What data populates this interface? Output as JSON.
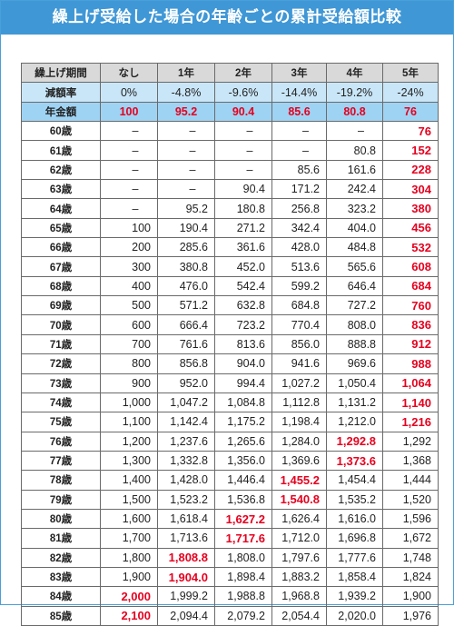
{
  "title": "繰上げ受給した場合の年齢ごとの累計受給額比較",
  "columns": [
    "繰上げ期間",
    "なし",
    "1年",
    "2年",
    "3年",
    "4年",
    "5年"
  ],
  "rate_row": {
    "label": "減額率",
    "values": [
      "0%",
      "-4.8%",
      "-9.6%",
      "-14.4%",
      "-19.2%",
      "-24%"
    ]
  },
  "amount_row": {
    "label": "年金額",
    "values": [
      "100",
      "95.2",
      "90.4",
      "85.6",
      "80.8",
      "76"
    ]
  },
  "accent_red": "#e6001e",
  "header_blue": "#3f97d6",
  "rows": [
    {
      "age": "60歳",
      "values": [
        "–",
        "–",
        "–",
        "–",
        "–",
        "76"
      ]
    },
    {
      "age": "61歳",
      "values": [
        "–",
        "–",
        "–",
        "–",
        "80.8",
        "152"
      ]
    },
    {
      "age": "62歳",
      "values": [
        "–",
        "–",
        "–",
        "85.6",
        "161.6",
        "228"
      ]
    },
    {
      "age": "63歳",
      "values": [
        "–",
        "–",
        "90.4",
        "171.2",
        "242.4",
        "304"
      ]
    },
    {
      "age": "64歳",
      "values": [
        "–",
        "95.2",
        "180.8",
        "256.8",
        "323.2",
        "380"
      ]
    },
    {
      "age": "65歳",
      "values": [
        "100",
        "190.4",
        "271.2",
        "342.4",
        "404.0",
        "456"
      ]
    },
    {
      "age": "66歳",
      "values": [
        "200",
        "285.6",
        "361.6",
        "428.0",
        "484.8",
        "532"
      ]
    },
    {
      "age": "67歳",
      "values": [
        "300",
        "380.8",
        "452.0",
        "513.6",
        "565.6",
        "608"
      ]
    },
    {
      "age": "68歳",
      "values": [
        "400",
        "476.0",
        "542.4",
        "599.2",
        "646.4",
        "684"
      ]
    },
    {
      "age": "69歳",
      "values": [
        "500",
        "571.2",
        "632.8",
        "684.8",
        "727.2",
        "760"
      ]
    },
    {
      "age": "70歳",
      "values": [
        "600",
        "666.4",
        "723.2",
        "770.4",
        "808.0",
        "836"
      ]
    },
    {
      "age": "71歳",
      "values": [
        "700",
        "761.6",
        "813.6",
        "856.0",
        "888.8",
        "912"
      ]
    },
    {
      "age": "72歳",
      "values": [
        "800",
        "856.8",
        "904.0",
        "941.6",
        "969.6",
        "988"
      ]
    },
    {
      "age": "73歳",
      "values": [
        "900",
        "952.0",
        "994.4",
        "1,027.2",
        "1,050.4",
        "1,064"
      ]
    },
    {
      "age": "74歳",
      "values": [
        "1,000",
        "1,047.2",
        "1,084.8",
        "1,112.8",
        "1,131.2",
        "1,140"
      ]
    },
    {
      "age": "75歳",
      "values": [
        "1,100",
        "1,142.4",
        "1,175.2",
        "1,198.4",
        "1,212.0",
        "1,216"
      ]
    },
    {
      "age": "76歳",
      "values": [
        "1,200",
        "1,237.6",
        "1,265.6",
        "1,284.0",
        "1,292.8",
        "1,292"
      ]
    },
    {
      "age": "77歳",
      "values": [
        "1,300",
        "1,332.8",
        "1,356.0",
        "1,369.6",
        "1,373.6",
        "1,368"
      ]
    },
    {
      "age": "78歳",
      "values": [
        "1,400",
        "1,428.0",
        "1,446.4",
        "1,455.2",
        "1,454.4",
        "1,444"
      ]
    },
    {
      "age": "79歳",
      "values": [
        "1,500",
        "1,523.2",
        "1,536.8",
        "1,540.8",
        "1,535.2",
        "1,520"
      ]
    },
    {
      "age": "80歳",
      "values": [
        "1,600",
        "1,618.4",
        "1,627.2",
        "1,626.4",
        "1,616.0",
        "1,596"
      ]
    },
    {
      "age": "81歳",
      "values": [
        "1,700",
        "1,713.6",
        "1,717.6",
        "1,712.0",
        "1,696.8",
        "1,672"
      ]
    },
    {
      "age": "82歳",
      "values": [
        "1,800",
        "1,808.8",
        "1,808.0",
        "1,797.6",
        "1,777.6",
        "1,748"
      ]
    },
    {
      "age": "83歳",
      "values": [
        "1,900",
        "1,904.0",
        "1,898.4",
        "1,883.2",
        "1,858.4",
        "1,824"
      ]
    },
    {
      "age": "84歳",
      "values": [
        "2,000",
        "1,999.2",
        "1,988.8",
        "1,968.8",
        "1,939.2",
        "1,900"
      ]
    },
    {
      "age": "85歳",
      "values": [
        "2,100",
        "2,094.4",
        "2,079.2",
        "2,054.4",
        "2,020.0",
        "1,976"
      ]
    }
  ],
  "highlights": {
    "0": [
      24,
      25
    ],
    "1": [
      22,
      23
    ],
    "2": [
      20,
      21
    ],
    "3": [
      18,
      19
    ],
    "4": [
      16,
      17
    ],
    "5": [
      0,
      1,
      2,
      3,
      4,
      5,
      6,
      7,
      8,
      9,
      10,
      11,
      12,
      13,
      14,
      15
    ]
  }
}
